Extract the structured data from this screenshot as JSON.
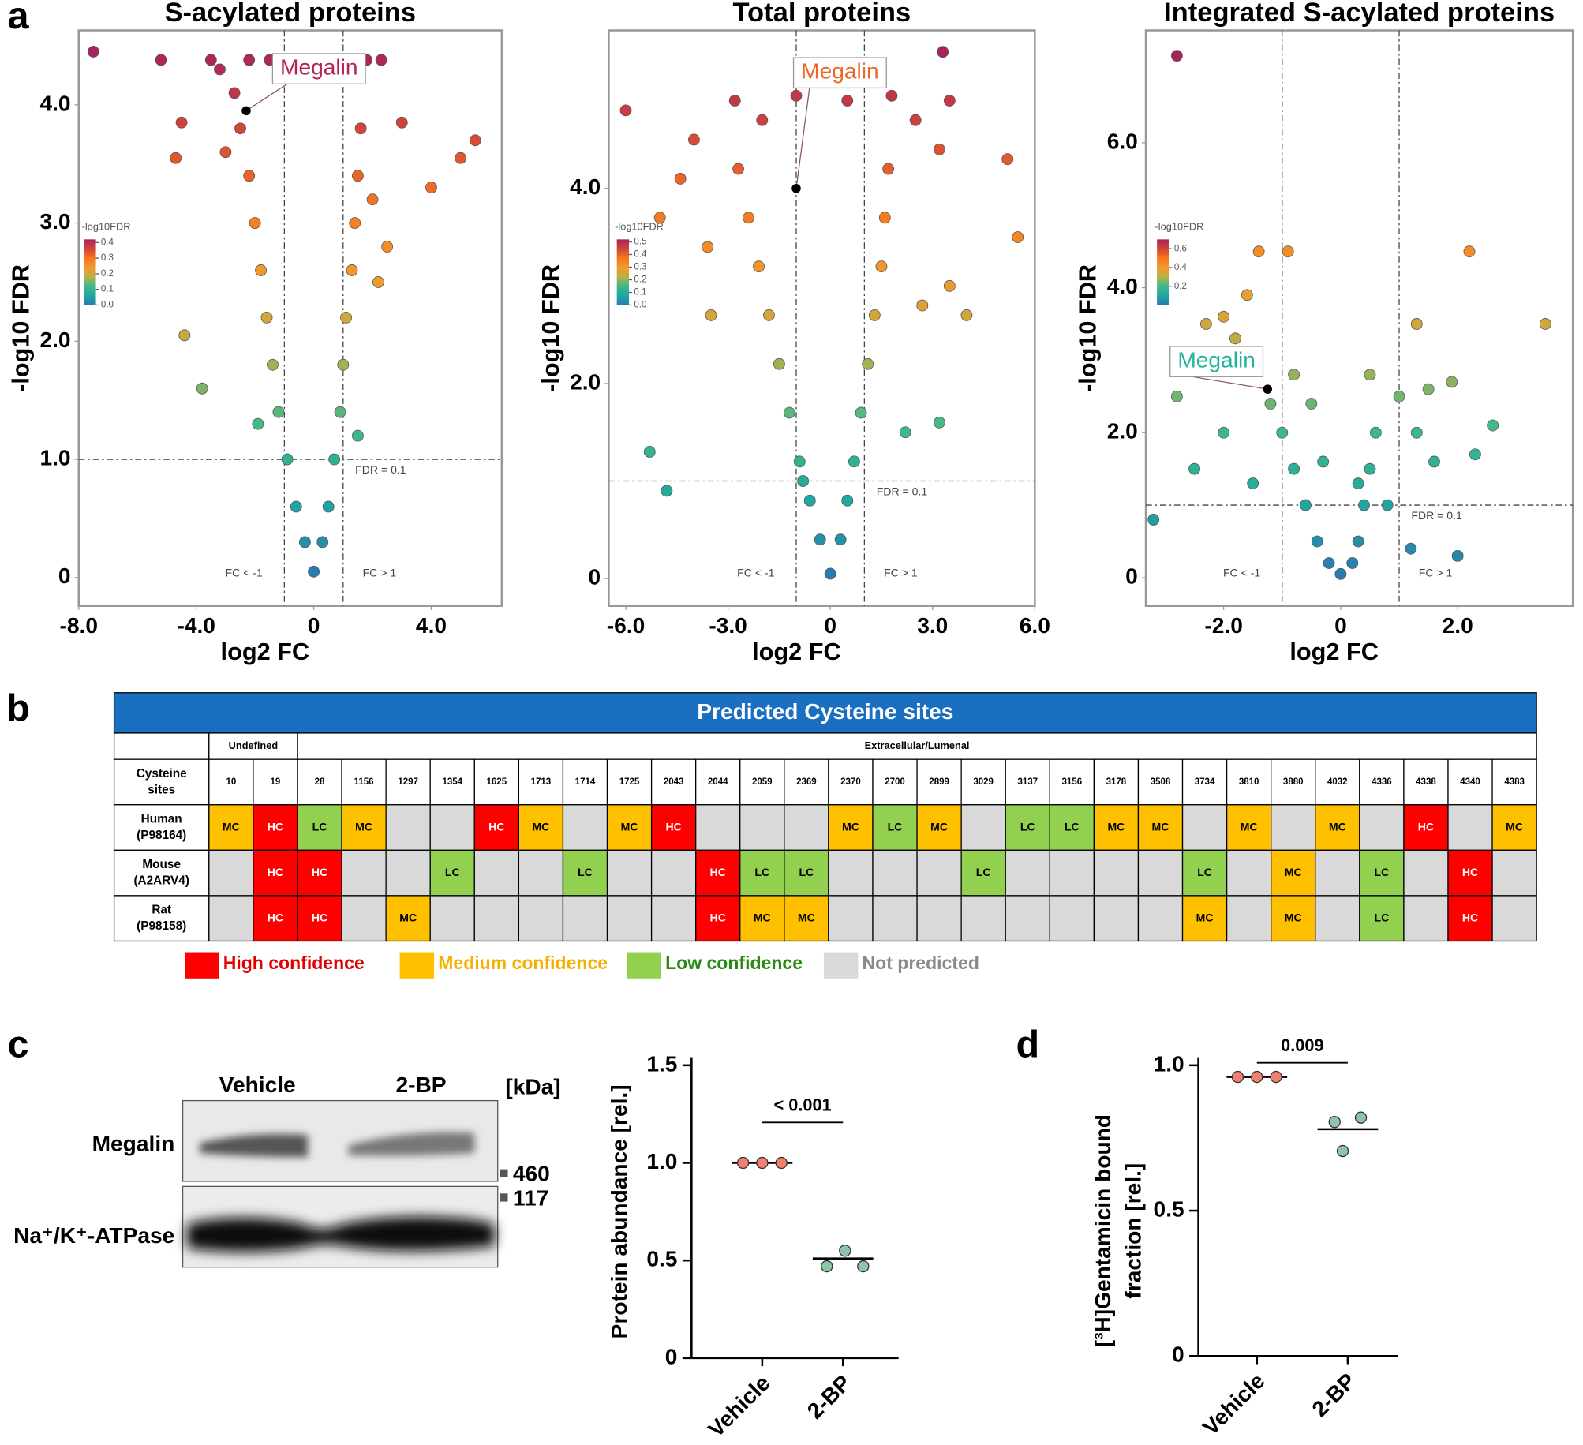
{
  "panel_labels": [
    "a",
    "b",
    "c",
    "d"
  ],
  "colormap": [
    "#2a78b4",
    "#1fa7a0",
    "#3fb98a",
    "#b6b048",
    "#f29a2c",
    "#f5761e",
    "#d2433a",
    "#a8245c"
  ],
  "volcanoes": [
    {
      "title": "S-acylated proteins",
      "xlabel": "log2 FC",
      "ylabel": "-log10 FDR",
      "xlim": [
        -8,
        6.4
      ],
      "ylim": [
        -0.24,
        4.63
      ],
      "xticks": [
        {
          "value": -8,
          "label": "-8.0"
        },
        {
          "value": -4,
          "label": "-4.0"
        },
        0,
        {
          "value": 4,
          "label": "4.0"
        }
      ],
      "yticks": [
        0,
        {
          "value": 1,
          "label": "1.0"
        },
        {
          "value": 2,
          "label": "2.0"
        },
        {
          "value": 3,
          "label": "3.0"
        },
        {
          "value": 4,
          "label": "4.0"
        }
      ],
      "fdr_threshold": 1,
      "fc_thresholds": [
        -1,
        1
      ],
      "fdr_label": "FDR = 0.1",
      "fc_labels": [
        "FC < -1",
        "FC > 1"
      ],
      "colorbar": {
        "title": "-log10FDR",
        "lim": [
          0,
          0.42
        ],
        "ticks": [
          0.4,
          0.3,
          0.2,
          0.1,
          {
            "value": 0,
            "label": "0.0"
          }
        ]
      },
      "highlight": {
        "label": "Megalin",
        "x": -2.3,
        "y": 3.95,
        "color": "#b5234f"
      },
      "x": [
        0,
        -0.3,
        0.3,
        -0.6,
        0.5,
        -0.9,
        0.7,
        -1.2,
        0.9,
        -1.4,
        1.0,
        -1.6,
        1.1,
        -1.8,
        1.3,
        -2.0,
        1.4,
        -2.2,
        1.5,
        -2.5,
        1.6,
        -3.0,
        2.0,
        2.5,
        2.2,
        -2.7,
        -3.2,
        -1.5,
        -2.2,
        -3.5,
        -5.2,
        -7.5,
        2.3,
        1.8,
        3.0,
        5.5,
        5.0,
        4.0,
        -4.4,
        -3.8,
        -1.9,
        1.5,
        -4.5,
        -4.7
      ],
      "values": [
        0.05,
        0.3,
        0.3,
        0.6,
        0.6,
        1.0,
        1.0,
        1.4,
        1.4,
        1.8,
        1.8,
        2.2,
        2.2,
        2.6,
        2.6,
        3.0,
        3.0,
        3.4,
        3.4,
        3.8,
        3.8,
        3.6,
        3.2,
        2.8,
        2.5,
        4.1,
        4.3,
        4.38,
        4.38,
        4.38,
        4.38,
        4.45,
        4.38,
        4.38,
        3.85,
        3.7,
        3.55,
        3.3,
        2.05,
        1.6,
        1.3,
        1.2,
        3.85,
        3.55
      ]
    },
    {
      "title": "Total proteins",
      "xlabel": "log2 FC",
      "ylabel": "-log10 FDR",
      "xlim": [
        -6.5,
        6.0
      ],
      "ylim": [
        -0.28,
        5.62
      ],
      "xticks": [
        {
          "value": -6,
          "label": "-6.0"
        },
        {
          "value": -3,
          "label": "-3.0"
        },
        0,
        {
          "value": 3,
          "label": "3.0"
        },
        {
          "value": 6,
          "label": "6.0"
        }
      ],
      "yticks": [
        0,
        {
          "value": 2,
          "label": "2.0"
        },
        {
          "value": 4,
          "label": "4.0"
        }
      ],
      "fdr_threshold": 1,
      "fc_thresholds": [
        -1,
        1
      ],
      "fdr_label": "FDR = 0.1",
      "fc_labels": [
        "FC < -1",
        "FC > 1"
      ],
      "colorbar": {
        "title": "-log10FDR",
        "lim": [
          0,
          0.52
        ],
        "ticks": [
          0.5,
          0.4,
          0.3,
          0.2,
          0.1,
          {
            "value": 0,
            "label": "0.0"
          }
        ]
      },
      "highlight": {
        "label": "Megalin",
        "x": -1.0,
        "y": 4.0,
        "color": "#e8692a"
      },
      "x": [
        0,
        -0.3,
        0.3,
        -0.6,
        0.5,
        -0.9,
        0.7,
        -1.2,
        0.9,
        -1.5,
        1.1,
        -1.8,
        1.3,
        -2.1,
        1.5,
        -2.4,
        1.6,
        -2.7,
        1.7,
        -2.0,
        -1.0,
        0.5,
        1.8,
        -2.8,
        -4.0,
        -4.4,
        -3.6,
        -5.0,
        -6.0,
        2.5,
        3.2,
        3.5,
        3.3,
        -5.3,
        -4.8,
        2.7,
        3.5,
        4.0,
        5.5,
        5.2,
        -3.5,
        2.2,
        -0.8,
        3.2
      ],
      "values": [
        0.05,
        0.4,
        0.4,
        0.8,
        0.8,
        1.2,
        1.2,
        1.7,
        1.7,
        2.2,
        2.2,
        2.7,
        2.7,
        3.2,
        3.2,
        3.7,
        3.7,
        4.2,
        4.2,
        4.7,
        4.95,
        4.9,
        4.95,
        4.9,
        4.5,
        4.1,
        3.4,
        3.7,
        4.8,
        4.7,
        4.4,
        4.9,
        5.4,
        1.3,
        0.9,
        2.8,
        3.0,
        2.7,
        3.5,
        4.3,
        2.7,
        1.5,
        1.0,
        1.6
      ]
    },
    {
      "title": "Integrated S-acylated proteins",
      "xlabel": "log2 FC",
      "ylabel": "-log10 FDR",
      "xlim": [
        -3.33,
        3.97
      ],
      "ylim": [
        -0.39,
        7.55
      ],
      "xticks": [
        {
          "value": -2,
          "label": "-2.0"
        },
        0,
        {
          "value": 2,
          "label": "2.0"
        }
      ],
      "yticks": [
        0,
        {
          "value": 2,
          "label": "2.0"
        },
        {
          "value": 4,
          "label": "4.0"
        },
        {
          "value": 6,
          "label": "6.0"
        }
      ],
      "fdr_threshold": 1,
      "fc_thresholds": [
        -1,
        1
      ],
      "fdr_label": "FDR = 0.1",
      "fc_labels": [
        "FC < -1",
        "FC > 1"
      ],
      "colorbar": {
        "title": "-log10FDR",
        "lim": [
          0,
          0.7
        ],
        "ticks": [
          0.6,
          0.4,
          0.2
        ]
      },
      "highlight": {
        "label": "Megalin",
        "x": -1.25,
        "y": 2.6,
        "color": "#22b39a"
      },
      "x": [
        0,
        -0.2,
        0.2,
        -0.4,
        0.3,
        -0.6,
        0.4,
        -0.8,
        0.5,
        -1.0,
        0.6,
        -1.2,
        -0.8,
        -1.5,
        -1.8,
        -2.0,
        -1.6,
        -1.4,
        -0.9,
        -2.3,
        -2.8,
        -3.2,
        -2.5,
        -2.0,
        -1.5,
        -0.5,
        0.3,
        0.8,
        1.0,
        1.3,
        1.5,
        1.9,
        1.6,
        2.3,
        2.6,
        1.3,
        2.2,
        3.5,
        -2.8,
        1.2,
        2.0,
        -0.3,
        0.5
      ],
      "values": [
        0.05,
        0.2,
        0.2,
        0.5,
        0.5,
        1.0,
        1.0,
        1.5,
        1.5,
        2.0,
        2.0,
        2.4,
        2.8,
        3.0,
        3.3,
        3.6,
        3.9,
        4.5,
        4.5,
        3.5,
        2.5,
        0.8,
        1.5,
        2.0,
        1.3,
        2.4,
        1.3,
        1.0,
        2.5,
        2.0,
        2.6,
        2.7,
        1.6,
        1.7,
        2.1,
        3.5,
        4.5,
        3.5,
        7.2,
        0.4,
        0.3,
        1.6,
        2.8
      ]
    }
  ],
  "table": {
    "title": "Predicted Cysteine sites",
    "groups": [
      {
        "label": "Undefined",
        "span": 2
      },
      {
        "label": "Extracellular/Lumenal",
        "span": 28
      }
    ],
    "row_header": [
      "Cysteine",
      "sites"
    ],
    "sites": [
      10,
      19,
      28,
      1156,
      1297,
      1354,
      1625,
      1713,
      1714,
      1725,
      2043,
      2044,
      2059,
      2369,
      2370,
      2700,
      2899,
      3029,
      3137,
      3156,
      3178,
      3508,
      3734,
      3810,
      3880,
      4032,
      4336,
      4338,
      4340,
      4383
    ],
    "species": [
      {
        "name": "Human",
        "id": "(P98164)",
        "calls": [
          "MC",
          "HC",
          "LC",
          "MC",
          null,
          null,
          "HC",
          "MC",
          null,
          "MC",
          "HC",
          null,
          null,
          null,
          "MC",
          "LC",
          "MC",
          null,
          "LC",
          "LC",
          "MC",
          "MC",
          null,
          "MC",
          null,
          "MC",
          null,
          "HC",
          null,
          "MC"
        ]
      },
      {
        "name": "Mouse",
        "id": "(A2ARV4)",
        "calls": [
          null,
          "HC",
          "HC",
          null,
          null,
          "LC",
          null,
          null,
          "LC",
          null,
          null,
          "HC",
          "LC",
          "LC",
          null,
          null,
          null,
          "LC",
          null,
          null,
          null,
          null,
          "LC",
          null,
          "MC",
          null,
          "LC",
          null,
          "HC",
          null
        ]
      },
      {
        "name": "Rat",
        "id": "(P98158)",
        "calls": [
          null,
          "HC",
          "HC",
          null,
          "MC",
          null,
          null,
          null,
          null,
          null,
          null,
          "HC",
          "MC",
          "MC",
          null,
          null,
          null,
          null,
          null,
          null,
          null,
          null,
          "MC",
          null,
          "MC",
          null,
          "LC",
          null,
          "HC",
          null
        ]
      }
    ],
    "legend": [
      {
        "code": "HC",
        "label": "High confidence",
        "color": "#ff0000",
        "text_color": "#e00000"
      },
      {
        "code": "MC",
        "label": "Medium confidence",
        "color": "#ffc000",
        "text_color": "#f5b000"
      },
      {
        "code": "LC",
        "label": "Low confidence",
        "color": "#92d050",
        "text_color": "#2a8a10"
      },
      {
        "code": null,
        "label": "Not predicted",
        "color": "#d9d9d9",
        "text_color": "#8a8a8a"
      }
    ]
  },
  "blot": {
    "lanes": [
      "Vehicle",
      "2-BP"
    ],
    "unit": "[kDa]",
    "rows": [
      "Megalin",
      "Na⁺/K⁺-ATPase"
    ],
    "markers": [
      460,
      117
    ]
  },
  "dotplots": [
    {
      "ylabel": [
        "Protein abundance [rel.]"
      ],
      "ylim": [
        0,
        1.5
      ],
      "yticks": [
        0,
        {
          "value": 0.5,
          "label": "0.5"
        },
        {
          "value": 1,
          "label": "1.0"
        },
        {
          "value": 1.5,
          "label": "1.5"
        }
      ],
      "groups": [
        {
          "name": "Vehicle",
          "color": "#f08070",
          "values": [
            1.0,
            1.0,
            1.0
          ],
          "mean": 1.0
        },
        {
          "name": "2-BP",
          "color": "#8ec4a8",
          "values": [
            0.55,
            0.47,
            0.47
          ],
          "mean": 0.51
        }
      ],
      "p_value": "< 0.001"
    },
    {
      "ylabel": [
        "[³H]Gentamicin bound",
        "fraction [rel.]"
      ],
      "ylim": [
        0,
        1.0
      ],
      "yticks": [
        0,
        {
          "value": 0.5,
          "label": "0.5"
        },
        {
          "value": 1,
          "label": "1.0"
        }
      ],
      "groups": [
        {
          "name": "Vehicle",
          "color": "#f08070",
          "values": [
            0.96,
            0.96,
            0.96
          ],
          "mean": 0.96
        },
        {
          "name": "2-BP",
          "color": "#8ec4a8",
          "values": [
            0.82,
            0.805,
            0.705
          ],
          "mean": 0.78
        }
      ],
      "p_value": "0.009"
    }
  ]
}
